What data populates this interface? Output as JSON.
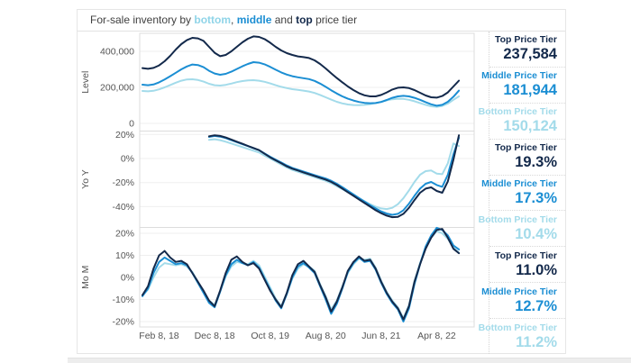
{
  "title": {
    "parts": [
      {
        "text": "For-sale inventory by ",
        "color": "#404040",
        "bold": false
      },
      {
        "text": "bottom",
        "color": "#8fd4e8",
        "bold": true
      },
      {
        "text": ", ",
        "color": "#404040",
        "bold": false
      },
      {
        "text": "middle",
        "color": "#1b8ed3",
        "bold": true
      },
      {
        "text": " and ",
        "color": "#404040",
        "bold": false
      },
      {
        "text": "top",
        "color": "#13294b",
        "bold": true
      },
      {
        "text": " price tier",
        "color": "#404040",
        "bold": false
      }
    ]
  },
  "tier_colors": {
    "top": "#13294b",
    "middle": "#1b8ed3",
    "bottom": "#a3dbea"
  },
  "stats": {
    "groups": [
      {
        "metric": "Level",
        "items": [
          {
            "tier": "top",
            "label": "Top Price Tier",
            "value": "237,584"
          },
          {
            "tier": "middle",
            "label": "Middle Price Tier",
            "value": "181,944"
          },
          {
            "tier": "bottom",
            "label": "Bottom Price Tier",
            "value": "150,124"
          }
        ]
      },
      {
        "metric": "YoY",
        "items": [
          {
            "tier": "top",
            "label": "Top Price Tier",
            "value": "19.3%"
          },
          {
            "tier": "middle",
            "label": "Middle Price Tier",
            "value": "17.3%"
          },
          {
            "tier": "bottom",
            "label": "Bottom Price Tier",
            "value": "10.4%"
          }
        ]
      },
      {
        "metric": "MoM",
        "items": [
          {
            "tier": "top",
            "label": "Top Price Tier",
            "value": "11.0%"
          },
          {
            "tier": "middle",
            "label": "Middle Price Tier",
            "value": "12.7%"
          },
          {
            "tier": "bottom",
            "label": "Bottom Price Tier",
            "value": "11.2%"
          }
        ]
      }
    ]
  },
  "chart_data": {
    "type": "line",
    "x_unit": "month",
    "x_tick_labels": [
      "Feb 8, 18",
      "Dec 8, 18",
      "Oct 8, 19",
      "Aug 8, 20",
      "Jun 8, 21",
      "Apr 8, 22"
    ],
    "x_tick_indices": [
      3,
      13,
      23,
      33,
      43,
      53
    ],
    "n_points": 58,
    "legend_position": "none",
    "grid": true,
    "panels": [
      {
        "id": "level",
        "ylabel": "Level",
        "ylim": [
          0,
          480000
        ],
        "yticks": [
          {
            "v": 0,
            "label": "0"
          },
          {
            "v": 200000,
            "label": "200,000"
          },
          {
            "v": 400000,
            "label": "400,000"
          }
        ],
        "series": [
          {
            "name": "Top Price Tier",
            "tier": "top",
            "values": [
              307000,
              303000,
              308000,
              322000,
              345000,
              375000,
              410000,
              440000,
              462000,
              475000,
              472000,
              458000,
              425000,
              392000,
              373000,
              380000,
              400000,
              425000,
              450000,
              470000,
              483000,
              480000,
              468000,
              448000,
              425000,
              405000,
              390000,
              380000,
              372000,
              368000,
              363000,
              350000,
              330000,
              305000,
              278000,
              252000,
              228000,
              205000,
              185000,
              168000,
              156000,
              150000,
              150000,
              158000,
              172000,
              188000,
              198000,
              200000,
              196000,
              185000,
              170000,
              155000,
              145000,
              143000,
              152000,
              172000,
              205000,
              237584
            ]
          },
          {
            "name": "Middle Price Tier",
            "tier": "middle",
            "values": [
              215000,
              212000,
              216000,
              228000,
              244000,
              262000,
              281000,
              300000,
              316000,
              327000,
              324000,
              312000,
              292000,
              277000,
              270000,
              275000,
              287000,
              302000,
              317000,
              330000,
              340000,
              337000,
              328000,
              314000,
              298000,
              283000,
              271000,
              262000,
              256000,
              251000,
              246000,
              236000,
              221000,
              203000,
              184000,
              166000,
              150000,
              137000,
              127000,
              119000,
              114000,
              112000,
              113000,
              119000,
              130000,
              142000,
              150000,
              153000,
              150000,
              142000,
              131000,
              118000,
              106000,
              98000,
              103000,
              120000,
              148000,
              181944
            ]
          },
          {
            "name": "Bottom Price Tier",
            "tier": "bottom",
            "values": [
              180000,
              178000,
              181000,
              189000,
              200000,
              213000,
              226000,
              237000,
              244000,
              245000,
              241000,
              232000,
              220000,
              212000,
              210000,
              214000,
              221000,
              229000,
              235000,
              239000,
              240000,
              237000,
              231000,
              222000,
              212000,
              203000,
              196000,
              190000,
              186000,
              182000,
              177000,
              169000,
              158000,
              145000,
              132000,
              120000,
              111000,
              105000,
              102000,
              101000,
              103000,
              107000,
              113000,
              120000,
              128000,
              134000,
              137000,
              136000,
              131000,
              123000,
              113000,
              103000,
              95000,
              92000,
              97000,
              110000,
              131000,
              150124
            ]
          }
        ]
      },
      {
        "id": "yoy",
        "ylabel": "Yo Y",
        "ylim": [
          -50,
          22
        ],
        "yticks": [
          {
            "v": 20,
            "label": "20%"
          },
          {
            "v": 0,
            "label": "0%"
          },
          {
            "v": -20,
            "label": "-20%"
          },
          {
            "v": -40,
            "label": "-40%"
          }
        ],
        "series": [
          {
            "name": "Top Price Tier",
            "tier": "top",
            "values": [
              null,
              null,
              null,
              null,
              null,
              null,
              null,
              null,
              null,
              null,
              null,
              null,
              18.5,
              19.3,
              18.8,
              17.5,
              15.8,
              14.0,
              12.3,
              10.5,
              8.8,
              7.0,
              4.0,
              1.0,
              -1.5,
              -4.0,
              -6.5,
              -8.5,
              -10.0,
              -11.5,
              -13.0,
              -14.5,
              -16.0,
              -17.5,
              -19.5,
              -22.0,
              -25.0,
              -28.0,
              -31.0,
              -34.0,
              -37.0,
              -40.0,
              -43.0,
              -45.5,
              -47.5,
              -48.8,
              -48.5,
              -46.0,
              -41.0,
              -34.5,
              -28.5,
              -25.0,
              -24.0,
              -27.0,
              -28.5,
              -19.0,
              -1.0,
              19.3
            ]
          },
          {
            "name": "Middle Price Tier",
            "tier": "middle",
            "values": [
              null,
              null,
              null,
              null,
              null,
              null,
              null,
              null,
              null,
              null,
              null,
              null,
              18.0,
              18.8,
              18.2,
              17.0,
              15.3,
              13.6,
              12.0,
              10.3,
              8.6,
              7.0,
              4.2,
              1.5,
              -1.0,
              -3.3,
              -5.8,
              -7.8,
              -9.3,
              -10.8,
              -12.3,
              -13.8,
              -15.2,
              -16.6,
              -18.5,
              -21.0,
              -23.8,
              -26.8,
              -29.8,
              -32.8,
              -35.8,
              -38.8,
              -41.5,
              -44.0,
              -45.8,
              -46.8,
              -46.0,
              -43.0,
              -37.5,
              -31.0,
              -25.0,
              -21.0,
              -19.5,
              -22.0,
              -23.5,
              -13.5,
              3.5,
              17.3
            ]
          },
          {
            "name": "Bottom Price Tier",
            "tier": "bottom",
            "values": [
              null,
              null,
              null,
              null,
              null,
              null,
              null,
              null,
              null,
              null,
              null,
              null,
              15.5,
              16.0,
              15.3,
              14.0,
              12.5,
              11.0,
              9.5,
              8.0,
              6.5,
              5.0,
              2.5,
              0.0,
              -2.5,
              -5.0,
              -7.5,
              -9.5,
              -11.0,
              -12.5,
              -14.0,
              -15.5,
              -17.0,
              -18.5,
              -20.5,
              -23.0,
              -25.5,
              -28.0,
              -30.5,
              -33.0,
              -35.5,
              -38.0,
              -40.0,
              -41.5,
              -42.0,
              -41.0,
              -38.0,
              -33.0,
              -26.5,
              -19.5,
              -13.5,
              -10.5,
              -10.0,
              -12.5,
              -13.0,
              -4.0,
              12.5,
              10.4
            ]
          }
        ]
      },
      {
        "id": "mom",
        "ylabel": "Mo M",
        "ylim": [
          -22,
          23
        ],
        "yticks": [
          {
            "v": 20,
            "label": "20%"
          },
          {
            "v": 10,
            "label": "10%"
          },
          {
            "v": 0,
            "label": "0%"
          },
          {
            "v": -10,
            "label": "-10%"
          },
          {
            "v": -20,
            "label": "-20%"
          }
        ],
        "series": [
          {
            "name": "Top Price Tier",
            "tier": "top",
            "values": [
              -8,
              -4,
              4,
              10,
              12,
              9,
              7,
              7.5,
              6,
              2,
              -2,
              -6,
              -10.5,
              -13,
              -6,
              2,
              8,
              9.5,
              7,
              5.5,
              6.5,
              4,
              -1,
              -6,
              -10,
              -13.5,
              -7,
              1,
              6,
              7.5,
              5,
              2.5,
              -3.5,
              -9,
              -15.5,
              -11,
              -4.5,
              3,
              7,
              9.5,
              7.5,
              8,
              4,
              -2,
              -7,
              -11,
              -14,
              -19,
              -13,
              -2,
              6,
              13,
              18,
              21.5,
              22,
              18,
              13,
              11
            ]
          },
          {
            "name": "Middle Price Tier",
            "tier": "middle",
            "values": [
              -8.5,
              -5,
              2,
              7,
              9,
              7.5,
              6,
              6.5,
              5.5,
              2,
              -2.5,
              -7,
              -11.5,
              -13.5,
              -6.5,
              1,
              6,
              8,
              6.5,
              5.5,
              7,
              4.5,
              -0.5,
              -5.5,
              -10.5,
              -14,
              -7.5,
              0,
              5,
              6.5,
              4.5,
              2,
              -4,
              -10,
              -16.5,
              -12,
              -5,
              2.5,
              6.5,
              9,
              7,
              7.5,
              3.5,
              -2.5,
              -7.5,
              -11.5,
              -14.5,
              -20,
              -14,
              -3,
              6,
              14,
              19,
              22.5,
              21.5,
              19,
              14.5,
              12.7
            ]
          },
          {
            "name": "Bottom Price Tier",
            "tier": "bottom",
            "values": [
              -8,
              -5.5,
              0,
              4.5,
              6.5,
              6,
              5.5,
              6,
              5,
              2.5,
              -2,
              -6.5,
              -10.5,
              -12.5,
              -6,
              0.5,
              5,
              7,
              6.5,
              6,
              7.5,
              5.5,
              0.5,
              -4.5,
              -9.5,
              -13,
              -7,
              -0.5,
              4,
              6,
              5,
              3,
              -3,
              -8.5,
              -14.5,
              -10.5,
              -4,
              2,
              6,
              8.5,
              8,
              8.5,
              4.5,
              -1.5,
              -6.5,
              -10.5,
              -13.5,
              -18.5,
              -12.5,
              -1.5,
              6.5,
              13.5,
              18,
              21,
              20,
              17.5,
              13.5,
              11.2
            ]
          }
        ]
      }
    ]
  }
}
